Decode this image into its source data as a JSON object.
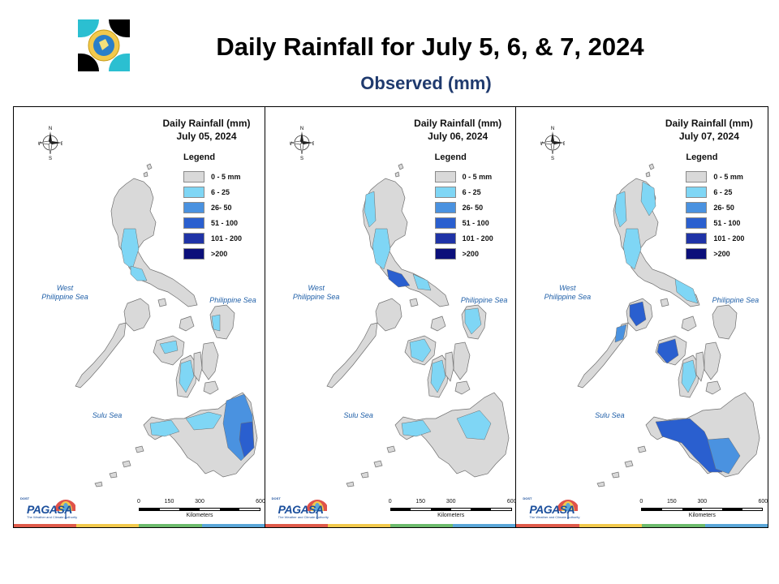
{
  "header": {
    "title": "Daily Rainfall for July 5, 6, & 7, 2024",
    "subtitle": "Observed (mm)"
  },
  "legend": {
    "title": "Legend",
    "items": [
      {
        "label": "0 - 5 mm",
        "color": "#d9d9d9"
      },
      {
        "label": "6 - 25",
        "color": "#7fd6f5"
      },
      {
        "label": "26- 50",
        "color": "#4a92e0"
      },
      {
        "label": "51 - 100",
        "color": "#2a5fcf"
      },
      {
        "label": "101 - 200",
        "color": "#1f33a6"
      },
      {
        "label": ">200",
        "color": "#0b0f7a"
      }
    ]
  },
  "panels": [
    {
      "title_line1": "Daily Rainfall (mm)",
      "title_line2": "July 05, 2024",
      "highlights": [
        "central-luzon",
        "manila-bay",
        "panay-north",
        "negros",
        "mindanao-east",
        "mindanao-east-deep",
        "mindanao-north",
        "zamboanga",
        "samar-west"
      ]
    },
    {
      "title_line1": "Daily Rainfall (mm)",
      "title_line2": "July 06, 2024",
      "highlights": [
        "ilocos",
        "central-luzon",
        "manila-bay-mid",
        "bicol-north",
        "panay",
        "negros",
        "samar",
        "mindanao-center",
        "zamboanga"
      ]
    },
    {
      "title_line1": "Daily Rainfall (mm)",
      "title_line2": "July 07, 2024",
      "highlights": [
        "cagayan",
        "ilocos",
        "central-luzon",
        "mindoro-mid",
        "palawan-north",
        "panay-mid",
        "negros",
        "mindanao-west-deep",
        "mindanao-south",
        "bicol"
      ]
    }
  ],
  "seas": {
    "west_line1": "West",
    "west_line2": "Philippine Sea",
    "east": "Philippine Sea",
    "sulu": "Sulu Sea"
  },
  "compass": {
    "n": "N",
    "s": "S",
    "e": "E",
    "w": "W"
  },
  "scale": {
    "ticks": [
      "0",
      "150",
      "300",
      "600"
    ],
    "unit": "Kilometers"
  },
  "branding": {
    "name": "PAGASA",
    "dost": "DOST",
    "tagline": "The Weather and Climate Authority"
  },
  "colors": {
    "stripe": [
      "#e05a4a",
      "#f2c94c",
      "#6dbb6d",
      "#5aa6d8"
    ]
  }
}
